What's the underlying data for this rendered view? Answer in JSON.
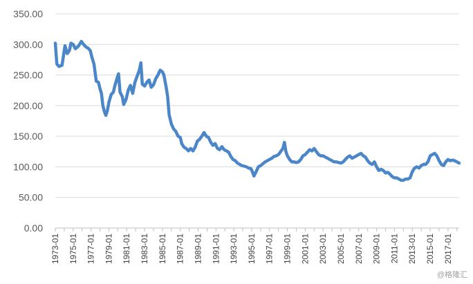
{
  "chart_data": {
    "type": "line",
    "title": "",
    "xlabel": "",
    "ylabel": "",
    "ylim": [
      0,
      350
    ],
    "yticks": [
      "0.00",
      "50.00",
      "100.00",
      "150.00",
      "200.00",
      "250.00",
      "300.00",
      "350.00"
    ],
    "xticks": [
      "1973-01",
      "1975-01",
      "1977-01",
      "1979-01",
      "1981-01",
      "1983-01",
      "1985-01",
      "1987-01",
      "1989-01",
      "1991-01",
      "1993-01",
      "1995-01",
      "1997-01",
      "1999-01",
      "2001-01",
      "2003-01",
      "2005-01",
      "2007-01",
      "2009-01",
      "2011-01",
      "2013-01",
      "2015-01",
      "2017-01"
    ],
    "grid": true,
    "legend": "none",
    "series": [
      {
        "color": "#4a86c8",
        "points": [
          [
            "1973-01",
            302
          ],
          [
            "1973-03",
            268
          ],
          [
            "1973-06",
            264
          ],
          [
            "1973-10",
            266
          ],
          [
            "1974-02",
            298
          ],
          [
            "1974-05",
            285
          ],
          [
            "1974-08",
            290
          ],
          [
            "1974-10",
            302
          ],
          [
            "1975-01",
            300
          ],
          [
            "1975-04",
            293
          ],
          [
            "1975-08",
            297
          ],
          [
            "1975-12",
            305
          ],
          [
            "1976-03",
            300
          ],
          [
            "1976-06",
            296
          ],
          [
            "1976-09",
            294
          ],
          [
            "1976-12",
            290
          ],
          [
            "1977-02",
            280
          ],
          [
            "1977-05",
            268
          ],
          [
            "1977-08",
            240
          ],
          [
            "1977-11",
            238
          ],
          [
            "1978-01",
            228
          ],
          [
            "1978-03",
            220
          ],
          [
            "1978-05",
            200
          ],
          [
            "1978-07",
            190
          ],
          [
            "1978-09",
            184
          ],
          [
            "1978-11",
            192
          ],
          [
            "1979-01",
            205
          ],
          [
            "1979-04",
            218
          ],
          [
            "1979-07",
            222
          ],
          [
            "1979-09",
            232
          ],
          [
            "1979-12",
            245
          ],
          [
            "1980-02",
            252
          ],
          [
            "1980-04",
            222
          ],
          [
            "1980-07",
            215
          ],
          [
            "1980-09",
            202
          ],
          [
            "1980-12",
            210
          ],
          [
            "1981-03",
            225
          ],
          [
            "1981-06",
            233
          ],
          [
            "1981-09",
            220
          ],
          [
            "1981-12",
            238
          ],
          [
            "1982-03",
            248
          ],
          [
            "1982-06",
            258
          ],
          [
            "1982-08",
            270
          ],
          [
            "1982-10",
            235
          ],
          [
            "1983-01",
            232
          ],
          [
            "1983-04",
            238
          ],
          [
            "1983-07",
            242
          ],
          [
            "1983-10",
            230
          ],
          [
            "1984-01",
            234
          ],
          [
            "1984-04",
            244
          ],
          [
            "1984-07",
            250
          ],
          [
            "1984-10",
            258
          ],
          [
            "1985-01",
            255
          ],
          [
            "1985-03",
            250
          ],
          [
            "1985-06",
            230
          ],
          [
            "1985-08",
            215
          ],
          [
            "1985-10",
            185
          ],
          [
            "1986-01",
            170
          ],
          [
            "1986-04",
            162
          ],
          [
            "1986-07",
            158
          ],
          [
            "1986-10",
            150
          ],
          [
            "1987-01",
            148
          ],
          [
            "1987-03",
            138
          ],
          [
            "1987-06",
            132
          ],
          [
            "1987-09",
            130
          ],
          [
            "1987-12",
            126
          ],
          [
            "1988-03",
            130
          ],
          [
            "1988-06",
            126
          ],
          [
            "1988-09",
            132
          ],
          [
            "1988-12",
            142
          ],
          [
            "1989-03",
            145
          ],
          [
            "1989-06",
            150
          ],
          [
            "1989-09",
            156
          ],
          [
            "1989-12",
            150
          ],
          [
            "1990-03",
            148
          ],
          [
            "1990-06",
            140
          ],
          [
            "1990-09",
            135
          ],
          [
            "1990-12",
            138
          ],
          [
            "1991-03",
            130
          ],
          [
            "1991-06",
            128
          ],
          [
            "1991-09",
            133
          ],
          [
            "1991-12",
            128
          ],
          [
            "1992-03",
            126
          ],
          [
            "1992-06",
            124
          ],
          [
            "1992-09",
            117
          ],
          [
            "1992-12",
            112
          ],
          [
            "1993-03",
            110
          ],
          [
            "1993-06",
            106
          ],
          [
            "1993-09",
            104
          ],
          [
            "1993-12",
            102
          ],
          [
            "1994-03",
            101
          ],
          [
            "1994-06",
            100
          ],
          [
            "1994-09",
            98
          ],
          [
            "1994-12",
            97
          ],
          [
            "1995-02",
            92
          ],
          [
            "1995-04",
            85
          ],
          [
            "1995-07",
            92
          ],
          [
            "1995-10",
            100
          ],
          [
            "1996-01",
            102
          ],
          [
            "1996-04",
            105
          ],
          [
            "1996-07",
            108
          ],
          [
            "1996-10",
            110
          ],
          [
            "1997-01",
            112
          ],
          [
            "1997-04",
            114
          ],
          [
            "1997-07",
            117
          ],
          [
            "1997-10",
            118
          ],
          [
            "1998-01",
            120
          ],
          [
            "1998-04",
            125
          ],
          [
            "1998-07",
            130
          ],
          [
            "1998-09",
            140
          ],
          [
            "1998-11",
            125
          ],
          [
            "1999-01",
            118
          ],
          [
            "1999-04",
            112
          ],
          [
            "1999-07",
            108
          ],
          [
            "1999-10",
            108
          ],
          [
            "2000-01",
            107
          ],
          [
            "2000-04",
            108
          ],
          [
            "2000-07",
            112
          ],
          [
            "2000-10",
            118
          ],
          [
            "2001-01",
            120
          ],
          [
            "2001-04",
            124
          ],
          [
            "2001-07",
            128
          ],
          [
            "2001-10",
            126
          ],
          [
            "2002-01",
            130
          ],
          [
            "2002-04",
            125
          ],
          [
            "2002-07",
            120
          ],
          [
            "2002-10",
            118
          ],
          [
            "2003-01",
            118
          ],
          [
            "2003-04",
            116
          ],
          [
            "2003-07",
            114
          ],
          [
            "2003-10",
            112
          ],
          [
            "2004-01",
            110
          ],
          [
            "2004-04",
            108
          ],
          [
            "2004-07",
            108
          ],
          [
            "2004-10",
            107
          ],
          [
            "2005-01",
            106
          ],
          [
            "2005-04",
            108
          ],
          [
            "2005-07",
            112
          ],
          [
            "2005-10",
            116
          ],
          [
            "2006-01",
            118
          ],
          [
            "2006-04",
            114
          ],
          [
            "2006-07",
            116
          ],
          [
            "2006-10",
            118
          ],
          [
            "2007-01",
            120
          ],
          [
            "2007-04",
            122
          ],
          [
            "2007-07",
            118
          ],
          [
            "2007-10",
            116
          ],
          [
            "2008-01",
            110
          ],
          [
            "2008-04",
            106
          ],
          [
            "2008-07",
            104
          ],
          [
            "2008-10",
            108
          ],
          [
            "2009-01",
            100
          ],
          [
            "2009-04",
            94
          ],
          [
            "2009-07",
            96
          ],
          [
            "2009-10",
            94
          ],
          [
            "2010-01",
            90
          ],
          [
            "2010-04",
            91
          ],
          [
            "2010-07",
            88
          ],
          [
            "2010-10",
            84
          ],
          [
            "2011-01",
            82
          ],
          [
            "2011-04",
            82
          ],
          [
            "2011-07",
            80
          ],
          [
            "2011-10",
            78
          ],
          [
            "2012-01",
            78
          ],
          [
            "2012-04",
            80
          ],
          [
            "2012-07",
            80
          ],
          [
            "2012-10",
            82
          ],
          [
            "2013-01",
            92
          ],
          [
            "2013-04",
            98
          ],
          [
            "2013-07",
            100
          ],
          [
            "2013-10",
            98
          ],
          [
            "2014-01",
            102
          ],
          [
            "2014-04",
            104
          ],
          [
            "2014-07",
            104
          ],
          [
            "2014-10",
            108
          ],
          [
            "2015-01",
            118
          ],
          [
            "2015-04",
            120
          ],
          [
            "2015-07",
            122
          ],
          [
            "2015-10",
            118
          ],
          [
            "2016-01",
            110
          ],
          [
            "2016-04",
            104
          ],
          [
            "2016-07",
            102
          ],
          [
            "2016-10",
            108
          ],
          [
            "2017-01",
            112
          ],
          [
            "2017-04",
            110
          ],
          [
            "2017-07",
            111
          ],
          [
            "2017-10",
            110
          ],
          [
            "2018-01",
            108
          ],
          [
            "2018-04",
            106
          ]
        ]
      }
    ]
  },
  "watermark": "@格隆汇"
}
